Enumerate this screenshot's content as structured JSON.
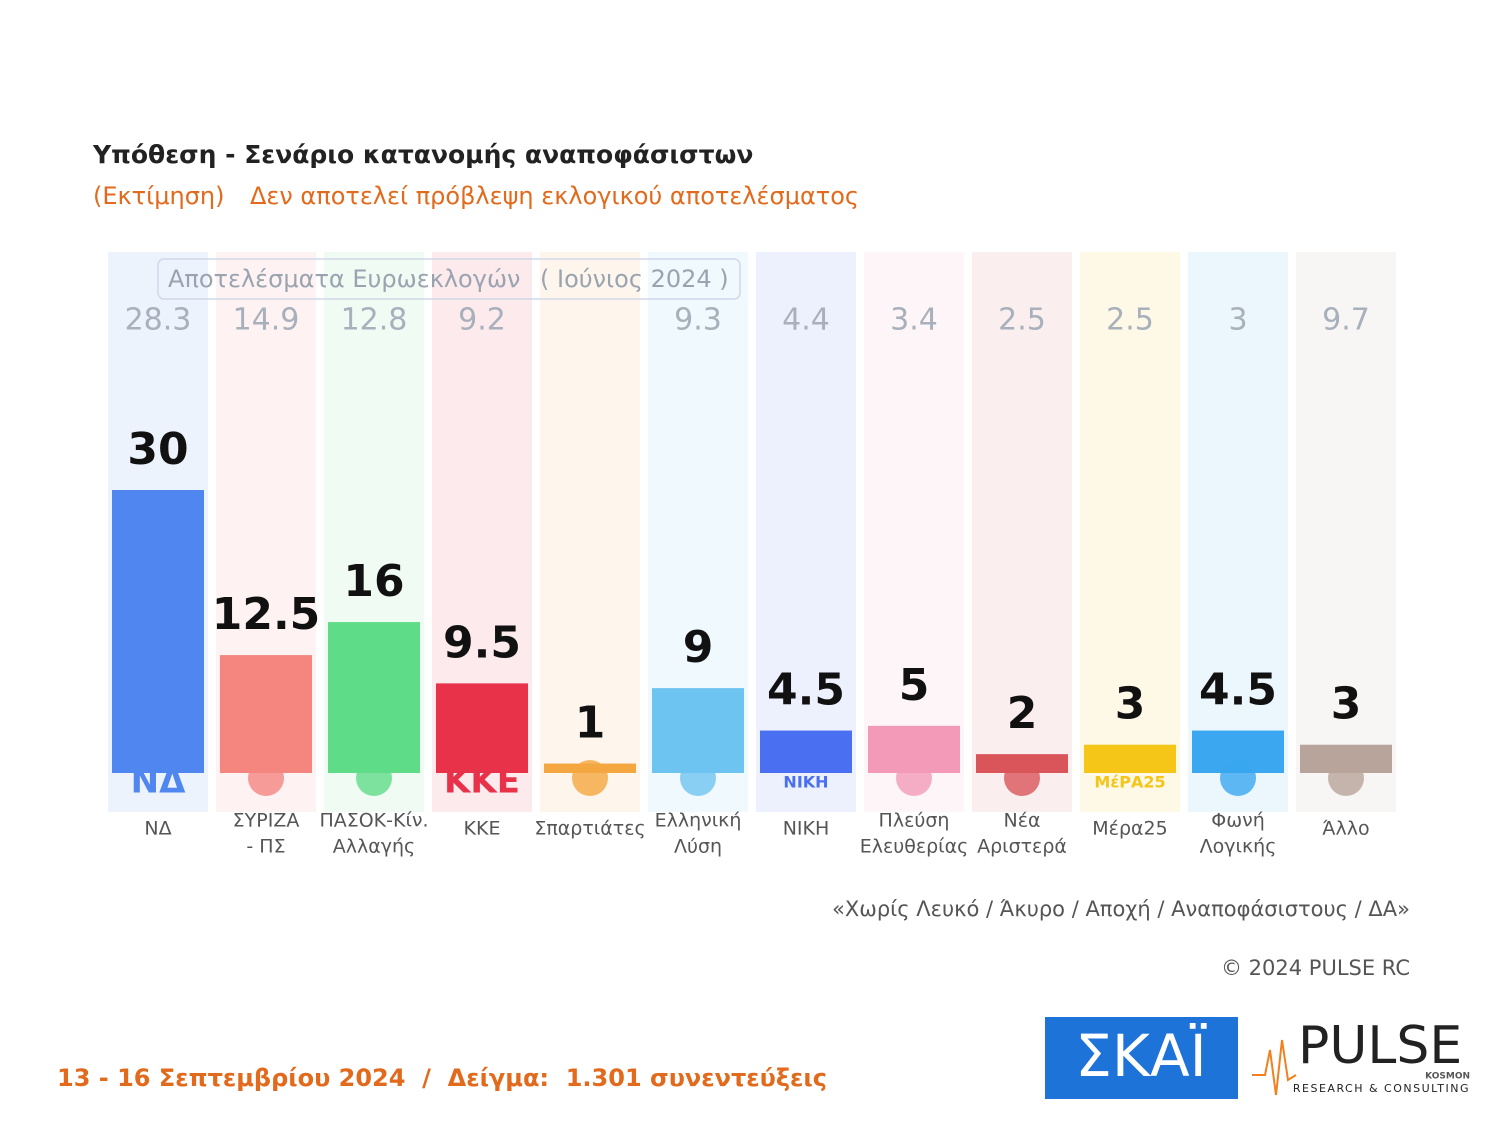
{
  "chart_data": {
    "type": "bar",
    "title": "Υπόθεση - Σενάριο κατανομής αναποφάσιστων",
    "subtitle": [
      "(Εκτίμηση)",
      "Δεν αποτελεί πρόβλεψη εκλογικού αποτελέσματος"
    ],
    "reference_label": [
      "Αποτελέσματα Ευρωεκλογών",
      "( Ιούνιος 2024 )"
    ],
    "categories": [
      [
        "ΝΔ"
      ],
      [
        "ΣΥΡΙΖΑ",
        "- ΠΣ"
      ],
      [
        "ΠΑΣΟΚ-Κίν.",
        "Αλλαγής"
      ],
      [
        "ΚΚΕ"
      ],
      [
        "Σπαρτιάτες"
      ],
      [
        "Ελληνική",
        "Λύση"
      ],
      [
        "ΝΙΚΗ"
      ],
      [
        "Πλεύση",
        "Ελευθερίας"
      ],
      [
        "Νέα",
        "Αριστερά"
      ],
      [
        "Μέρα25"
      ],
      [
        "Φωνή",
        "Λογικής"
      ],
      [
        "Άλλο"
      ]
    ],
    "logos": [
      "ΝΔ",
      null,
      null,
      "ΚΚΕ",
      null,
      null,
      "ΝΙΚΗ",
      null,
      null,
      "ΜέΡΑ25",
      null,
      null
    ],
    "values": [
      30,
      12.5,
      16,
      9.5,
      1,
      9,
      4.5,
      5,
      2,
      3,
      4.5,
      3
    ],
    "reference_values": [
      28.3,
      14.9,
      12.8,
      9.2,
      null,
      9.3,
      4.4,
      3.4,
      2.5,
      2.5,
      3,
      9.7
    ],
    "colors": [
      "#4f86f0",
      "#f4857f",
      "#5fdc88",
      "#e8324a",
      "#f4a640",
      "#6ec4f0",
      "#4a6ff0",
      "#f39ab8",
      "#d9555a",
      "#f5c518",
      "#3aa7f0",
      "#b8a49a"
    ],
    "note": "«Χωρίς Λευκό / Άκυρο / Αποχή / Αναποφάσιστους / ΔΑ»",
    "copyright": "© 2024 PULSE RC",
    "footer": "13 - 16 Σεπτεμβρίου 2024  /  Δείγμα:  1.301 συνεντεύξεις",
    "brand": [
      "ΣΚΑΪ",
      "PULSE",
      "KOSMON",
      "RESEARCH & CONSULTING"
    ]
  }
}
